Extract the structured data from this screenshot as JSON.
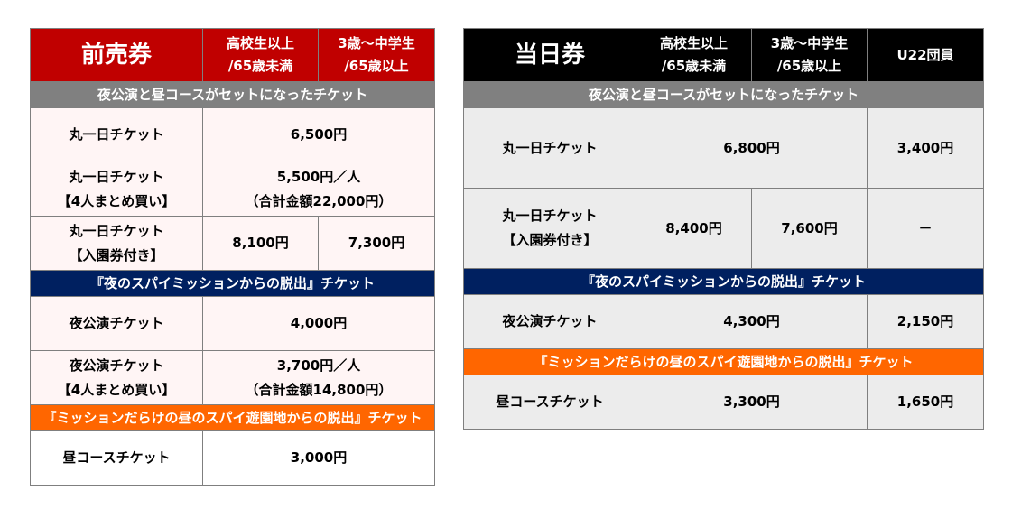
{
  "advance": {
    "title": "前売券",
    "col_adult": [
      "高校生以上",
      "/65歳未満"
    ],
    "col_child": [
      "3歳～中学生",
      "/65歳以上"
    ],
    "section_set": "夜公演と昼コースがセットになったチケット",
    "row_full_day": {
      "name": "丸一日チケット",
      "price": "6,500円"
    },
    "row_full_day_group": {
      "name": [
        "丸一日チケット",
        "【4人まとめ買い】"
      ],
      "price": [
        "5,500円／人",
        "（合計金額22,000円）"
      ]
    },
    "row_full_day_park": {
      "name": [
        "丸一日チケット",
        "【入園券付き】"
      ],
      "adult": "8,100円",
      "child": "7,300円"
    },
    "section_night": "『夜のスパイミッションからの脱出』チケット",
    "row_night": {
      "name": "夜公演チケット",
      "price": "4,000円"
    },
    "row_night_group": {
      "name": [
        "夜公演チケット",
        "【4人まとめ買い】"
      ],
      "price": [
        "3,700円／人",
        "（合計金額14,800円）"
      ]
    },
    "section_day": "『ミッションだらけの昼のスパイ遊園地からの脱出』チケット",
    "row_day": {
      "name": "昼コースチケット",
      "price": "3,000円"
    }
  },
  "same_day": {
    "title": "当日券",
    "col_adult": [
      "高校生以上",
      "/65歳未満"
    ],
    "col_child": [
      "3歳～中学生",
      "/65歳以上"
    ],
    "col_u22": "U22団員",
    "section_set": "夜公演と昼コースがセットになったチケット",
    "row_full_day": {
      "name": "丸一日チケット",
      "price": "6,800円",
      "u22": "3,400円"
    },
    "row_full_day_park": {
      "name": [
        "丸一日チケット",
        "【入園券付き】"
      ],
      "adult": "8,400円",
      "child": "7,600円",
      "u22": "－"
    },
    "section_night": "『夜のスパイミッションからの脱出』チケット",
    "row_night": {
      "name": "夜公演チケット",
      "price": "4,300円",
      "u22": "2,150円"
    },
    "section_day": "『ミッションだらけの昼のスパイ遊園地からの脱出』チケット",
    "row_day": {
      "name": "昼コースチケット",
      "price": "3,300円",
      "u22": "1,650円"
    }
  },
  "colors": {
    "advance_header": "#c00000",
    "same_day_header": "#000000",
    "section_gray": "#808080",
    "section_navy": "#002060",
    "section_orange": "#ff6600"
  }
}
